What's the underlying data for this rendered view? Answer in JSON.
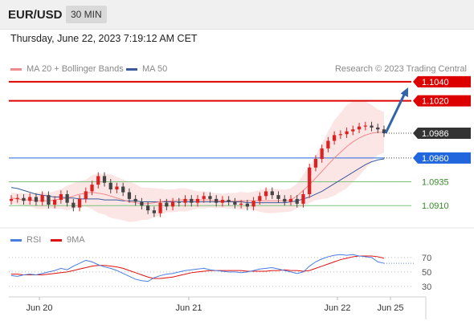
{
  "header": {
    "pair": "EUR/USD",
    "timeframe": "30 MIN",
    "datetime": "Thursday, June 22, 2023 7:19:12 AM CET",
    "credit": "Research © 2023 Trading Central"
  },
  "legend": {
    "bollinger_label": "MA 20 + Bollinger Bands",
    "ma50_label": "MA 50",
    "rsi_label": "RSI",
    "ma9_label": "9MA"
  },
  "colors": {
    "resistance": "#dd0000",
    "support": "#2266dd",
    "target_line": "#7bc47b",
    "bollinger_fill": "#fce1e1",
    "ma20": "#f08a8a",
    "ma50": "#3a5a9c",
    "rsi": "#4a7de0",
    "ma9": "#e01010",
    "arrow": "#3464a8",
    "candle_up": "#dd2020",
    "candle_down": "#444444"
  },
  "chart_data": [
    {
      "type": "line",
      "title": "EUR/USD 30 MIN",
      "x_ticks": [
        "Jun 20",
        "Jun 21",
        "Jun 22",
        "Jun 25"
      ],
      "ylim": [
        1.0895,
        1.1045
      ],
      "levels": [
        {
          "label": "1.1040",
          "value": 1.104,
          "kind": "resistance"
        },
        {
          "label": "1.1020",
          "value": 1.102,
          "kind": "resistance"
        },
        {
          "label": "1.0986",
          "value": 1.0986,
          "kind": "last"
        },
        {
          "label": "1.0960",
          "value": 1.096,
          "kind": "pivot"
        },
        {
          "label": "1.0935",
          "value": 1.0935,
          "kind": "support"
        },
        {
          "label": "1.0910",
          "value": 1.091,
          "kind": "support"
        }
      ],
      "series": [
        {
          "name": "Price",
          "values": [
            1.0917,
            1.0918,
            1.0915,
            1.0919,
            1.0914,
            1.0921,
            1.0911,
            1.0916,
            1.0922,
            1.0913,
            1.0908,
            1.0917,
            1.0925,
            1.0932,
            1.0941,
            1.0934,
            1.0927,
            1.093,
            1.0924,
            1.0917,
            1.0914,
            1.091,
            1.0905,
            1.0902,
            1.0913,
            1.0909,
            1.0914,
            1.0913,
            1.0917,
            1.0913,
            1.0917,
            1.092,
            1.0917,
            1.0913,
            1.0916,
            1.0914,
            1.0911,
            1.0912,
            1.0909,
            1.0915,
            1.092,
            1.0925,
            1.0921,
            1.0917,
            1.0914,
            1.0917,
            1.0912,
            1.0922,
            1.095,
            1.0959,
            1.097,
            1.0978,
            1.0984,
            1.0985,
            1.0988,
            1.099,
            1.0993,
            1.0994,
            1.0992,
            1.099,
            1.0986
          ]
        },
        {
          "name": "MA 50",
          "values": [
            1.0929,
            1.0928,
            1.0926,
            1.0924,
            1.0922,
            1.0921,
            1.092,
            1.0919,
            1.0919,
            1.0918,
            1.0918,
            1.0917,
            1.0917,
            1.0917,
            1.0917,
            1.0916,
            1.0916,
            1.0916,
            1.0915,
            1.0915,
            1.0915,
            1.0914,
            1.0914,
            1.0914,
            1.0914,
            1.0914,
            1.0914,
            1.0914,
            1.0914,
            1.0914,
            1.0914,
            1.0914,
            1.0914,
            1.0914,
            1.0914,
            1.0914,
            1.0914,
            1.0914,
            1.0913,
            1.0913,
            1.0913,
            1.0913,
            1.0913,
            1.0913,
            1.0913,
            1.0914,
            1.0915,
            1.0917,
            1.0919,
            1.0922,
            1.0925,
            1.0929,
            1.0933,
            1.0937,
            1.0941,
            1.0945,
            1.0949,
            1.0953,
            1.0956,
            1.0958,
            1.0959
          ]
        },
        {
          "name": "MA 20",
          "values": [
            1.0918,
            1.0917,
            1.0916,
            1.0916,
            1.0915,
            1.0915,
            1.0915,
            1.0916,
            1.0917,
            1.0918,
            1.092,
            1.0922,
            1.0923,
            1.0924,
            1.0923,
            1.0922,
            1.092,
            1.0918,
            1.0916,
            1.0914,
            1.0913,
            1.0912,
            1.0912,
            1.0913,
            1.0914,
            1.0915,
            1.0915,
            1.0916,
            1.0916,
            1.0916,
            1.0916,
            1.0916,
            1.0916,
            1.0915,
            1.0915,
            1.0915,
            1.0915,
            1.0915,
            1.0915,
            1.0915,
            1.0915,
            1.0915,
            1.0915,
            1.0915,
            1.0915,
            1.0916,
            1.092,
            1.0926,
            1.0932,
            1.0939,
            1.0946,
            1.0953,
            1.096,
            1.0966,
            1.0972,
            1.0977,
            1.0981,
            1.0984,
            1.0986,
            1.0987,
            1.0987
          ]
        }
      ]
    },
    {
      "type": "line",
      "title": "RSI",
      "yticks": [
        70,
        50,
        30
      ],
      "ylim": [
        20,
        82
      ],
      "series": [
        {
          "name": "RSI",
          "values": [
            45,
            44,
            46,
            47,
            46,
            48,
            50,
            52,
            55,
            53,
            58,
            62,
            66,
            64,
            60,
            57,
            55,
            52,
            48,
            44,
            40,
            38,
            37,
            42,
            45,
            47,
            48,
            50,
            52,
            53,
            54,
            55,
            53,
            52,
            51,
            50,
            50,
            49,
            50,
            52,
            54,
            55,
            56,
            54,
            52,
            50,
            48,
            50,
            58,
            64,
            68,
            71,
            73,
            74,
            73,
            74,
            72,
            71,
            70,
            64,
            62
          ]
        },
        {
          "name": "9MA",
          "values": [
            47,
            47,
            46,
            46,
            46,
            46,
            47,
            48,
            49,
            50,
            52,
            54,
            56,
            58,
            59,
            59,
            58,
            57,
            55,
            52,
            49,
            46,
            43,
            41,
            41,
            42,
            43,
            45,
            47,
            49,
            50,
            51,
            52,
            52,
            52,
            52,
            52,
            52,
            51,
            51,
            51,
            51,
            52,
            52,
            53,
            52,
            52,
            51,
            52,
            55,
            58,
            61,
            64,
            67,
            69,
            71,
            72,
            72,
            72,
            71,
            69
          ]
        }
      ]
    }
  ]
}
